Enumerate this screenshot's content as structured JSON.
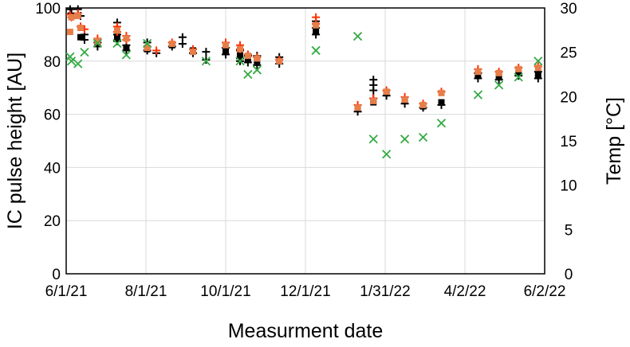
{
  "chart_data": {
    "type": "scatter",
    "xlabel": "Measurment date",
    "ylabel_left": "IC pulse height [AU]",
    "ylabel_right": "Temp [°C]",
    "ylim_left": [
      0,
      100
    ],
    "ylim_right": [
      0,
      30
    ],
    "grid": true,
    "x_ticks": [
      "6/1/21",
      "8/1/21",
      "10/1/21",
      "12/1/21",
      "1/31/22",
      "4/2/22",
      "6/2/22"
    ],
    "y_ticks_left": [
      "0",
      "20",
      "40",
      "60",
      "80",
      "100"
    ],
    "y_ticks_right": [
      "0",
      "5",
      "10",
      "15",
      "20",
      "25",
      "30"
    ],
    "colors": {
      "black": "#000000",
      "red": "#ff3300",
      "orange": "#e67e4a",
      "green": "#33aa44"
    },
    "series": [
      {
        "marker": "black-plus",
        "axis": "left",
        "points": [
          [
            "2021-06-04",
            99.5
          ],
          [
            "2021-06-05",
            98
          ],
          [
            "2021-06-10",
            99.5
          ],
          [
            "2021-06-12",
            97
          ],
          [
            "2021-06-15",
            90
          ],
          [
            "2021-06-15",
            88
          ],
          [
            "2021-06-25",
            87
          ],
          [
            "2021-06-25",
            85.5
          ],
          [
            "2021-07-10",
            94.5
          ],
          [
            "2021-07-10",
            90
          ],
          [
            "2021-07-10",
            87.5
          ],
          [
            "2021-07-17",
            84
          ],
          [
            "2021-07-17",
            86
          ],
          [
            "2021-08-02",
            87
          ],
          [
            "2021-08-02",
            84
          ],
          [
            "2021-08-09",
            83
          ],
          [
            "2021-08-21",
            85.5
          ],
          [
            "2021-08-29",
            89
          ],
          [
            "2021-08-29",
            86.5
          ],
          [
            "2021-09-06",
            83
          ],
          [
            "2021-09-16",
            80.5
          ],
          [
            "2021-09-16",
            83.5
          ],
          [
            "2021-10-01",
            82.5
          ],
          [
            "2021-10-01",
            85
          ],
          [
            "2021-10-12",
            84
          ],
          [
            "2021-10-12",
            81
          ],
          [
            "2021-10-12",
            80
          ],
          [
            "2021-10-18",
            82
          ],
          [
            "2021-10-18",
            79.5
          ],
          [
            "2021-10-25",
            82
          ],
          [
            "2021-10-25",
            78.5
          ],
          [
            "2021-11-11",
            81.5
          ],
          [
            "2021-11-11",
            79
          ],
          [
            "2021-12-09",
            95
          ],
          [
            "2021-12-09",
            92.5
          ],
          [
            "2021-12-09",
            90
          ],
          [
            "2022-01-10",
            61
          ],
          [
            "2022-01-22",
            73
          ],
          [
            "2022-01-22",
            71
          ],
          [
            "2022-01-22",
            69
          ],
          [
            "2022-01-22",
            66
          ],
          [
            "2022-02-01",
            67
          ],
          [
            "2022-02-15",
            64
          ],
          [
            "2022-03-01",
            62.5
          ],
          [
            "2022-03-15",
            63.5
          ],
          [
            "2022-04-12",
            73.5
          ],
          [
            "2022-04-12",
            75.5
          ],
          [
            "2022-04-28",
            73
          ],
          [
            "2022-05-13",
            74.5
          ],
          [
            "2022-05-28",
            73.5
          ],
          [
            "2022-05-28",
            76
          ]
        ]
      },
      {
        "marker": "black-square",
        "axis": "left",
        "points": [
          [
            "2021-06-12",
            89
          ],
          [
            "2021-06-25",
            86.5
          ],
          [
            "2021-07-10",
            89
          ],
          [
            "2021-07-17",
            85
          ],
          [
            "2021-08-02",
            84.5
          ],
          [
            "2021-08-21",
            86
          ],
          [
            "2021-09-06",
            84
          ],
          [
            "2021-10-01",
            84
          ],
          [
            "2021-10-12",
            82.5
          ],
          [
            "2021-10-18",
            80.5
          ],
          [
            "2021-10-25",
            80
          ],
          [
            "2021-11-11",
            80
          ],
          [
            "2021-12-09",
            91
          ],
          [
            "2022-01-10",
            62.5
          ],
          [
            "2022-01-22",
            64.5
          ],
          [
            "2022-02-01",
            68
          ],
          [
            "2022-02-15",
            65
          ],
          [
            "2022-03-01",
            63
          ],
          [
            "2022-03-15",
            64.5
          ],
          [
            "2022-04-12",
            74.5
          ],
          [
            "2022-04-28",
            74.5
          ],
          [
            "2022-05-13",
            75.5
          ],
          [
            "2022-05-28",
            75
          ]
        ]
      },
      {
        "marker": "red-plus",
        "axis": "left",
        "points": [
          [
            "2021-06-04",
            97.5
          ],
          [
            "2021-06-05",
            96.5
          ],
          [
            "2021-06-10",
            98
          ],
          [
            "2021-06-12",
            93
          ],
          [
            "2021-06-15",
            92
          ],
          [
            "2021-06-25",
            88.5
          ],
          [
            "2021-07-10",
            93
          ],
          [
            "2021-07-10",
            91
          ],
          [
            "2021-07-17",
            89.5
          ],
          [
            "2021-07-17",
            88
          ],
          [
            "2021-08-02",
            85.5
          ],
          [
            "2021-08-09",
            84
          ],
          [
            "2021-08-21",
            87
          ],
          [
            "2021-09-06",
            84.5
          ],
          [
            "2021-10-01",
            87
          ],
          [
            "2021-10-12",
            86
          ],
          [
            "2021-10-12",
            84.5
          ],
          [
            "2021-10-18",
            82.5
          ],
          [
            "2021-10-25",
            81.5
          ],
          [
            "2021-11-11",
            80.5
          ],
          [
            "2021-12-09",
            96.5
          ],
          [
            "2021-12-09",
            94
          ],
          [
            "2022-01-10",
            63.5
          ],
          [
            "2022-01-22",
            66
          ],
          [
            "2022-02-01",
            69
          ],
          [
            "2022-02-15",
            66.5
          ],
          [
            "2022-03-01",
            64
          ],
          [
            "2022-03-15",
            68.5
          ],
          [
            "2022-04-12",
            77
          ],
          [
            "2022-04-28",
            76
          ],
          [
            "2022-05-13",
            77.5
          ],
          [
            "2022-05-28",
            78
          ]
        ]
      },
      {
        "marker": "orange-square",
        "axis": "left",
        "points": [
          [
            "2021-06-04",
            91
          ],
          [
            "2021-06-05",
            96.5
          ],
          [
            "2021-06-10",
            97
          ],
          [
            "2021-06-12",
            92.5
          ],
          [
            "2021-06-25",
            87.5
          ],
          [
            "2021-07-10",
            91.5
          ],
          [
            "2021-07-17",
            88.5
          ],
          [
            "2021-08-02",
            85
          ],
          [
            "2021-08-21",
            86.5
          ],
          [
            "2021-09-06",
            83.5
          ],
          [
            "2021-10-01",
            86
          ],
          [
            "2021-10-12",
            84.5
          ],
          [
            "2021-10-18",
            82
          ],
          [
            "2021-10-25",
            81
          ],
          [
            "2021-11-11",
            80
          ],
          [
            "2021-12-09",
            93.5
          ],
          [
            "2022-01-10",
            62.5
          ],
          [
            "2022-01-22",
            65
          ],
          [
            "2022-02-01",
            68.5
          ],
          [
            "2022-02-15",
            65.5
          ],
          [
            "2022-03-01",
            63.5
          ],
          [
            "2022-03-15",
            68
          ],
          [
            "2022-04-12",
            76
          ],
          [
            "2022-04-28",
            75.5
          ],
          [
            "2022-05-13",
            77
          ],
          [
            "2022-05-28",
            77.5
          ]
        ]
      },
      {
        "marker": "green-x",
        "axis": "right",
        "points": [
          [
            "2021-06-04",
            24.5
          ],
          [
            "2021-06-05",
            24
          ],
          [
            "2021-06-10",
            23.7
          ],
          [
            "2021-06-15",
            25
          ],
          [
            "2021-06-25",
            26
          ],
          [
            "2021-07-10",
            26
          ],
          [
            "2021-07-17",
            24.7
          ],
          [
            "2021-08-02",
            26
          ],
          [
            "2021-09-16",
            24
          ],
          [
            "2021-10-12",
            24
          ],
          [
            "2021-10-18",
            22.5
          ],
          [
            "2021-10-25",
            23
          ],
          [
            "2021-12-09",
            25.2
          ],
          [
            "2022-01-10",
            26.8
          ],
          [
            "2022-01-22",
            15.2
          ],
          [
            "2022-02-01",
            13.5
          ],
          [
            "2022-02-15",
            15.2
          ],
          [
            "2022-03-01",
            15.4
          ],
          [
            "2022-03-15",
            17
          ],
          [
            "2022-04-12",
            20.2
          ],
          [
            "2022-04-28",
            21.3
          ],
          [
            "2022-05-13",
            22.2
          ],
          [
            "2022-05-28",
            24
          ]
        ]
      }
    ]
  }
}
